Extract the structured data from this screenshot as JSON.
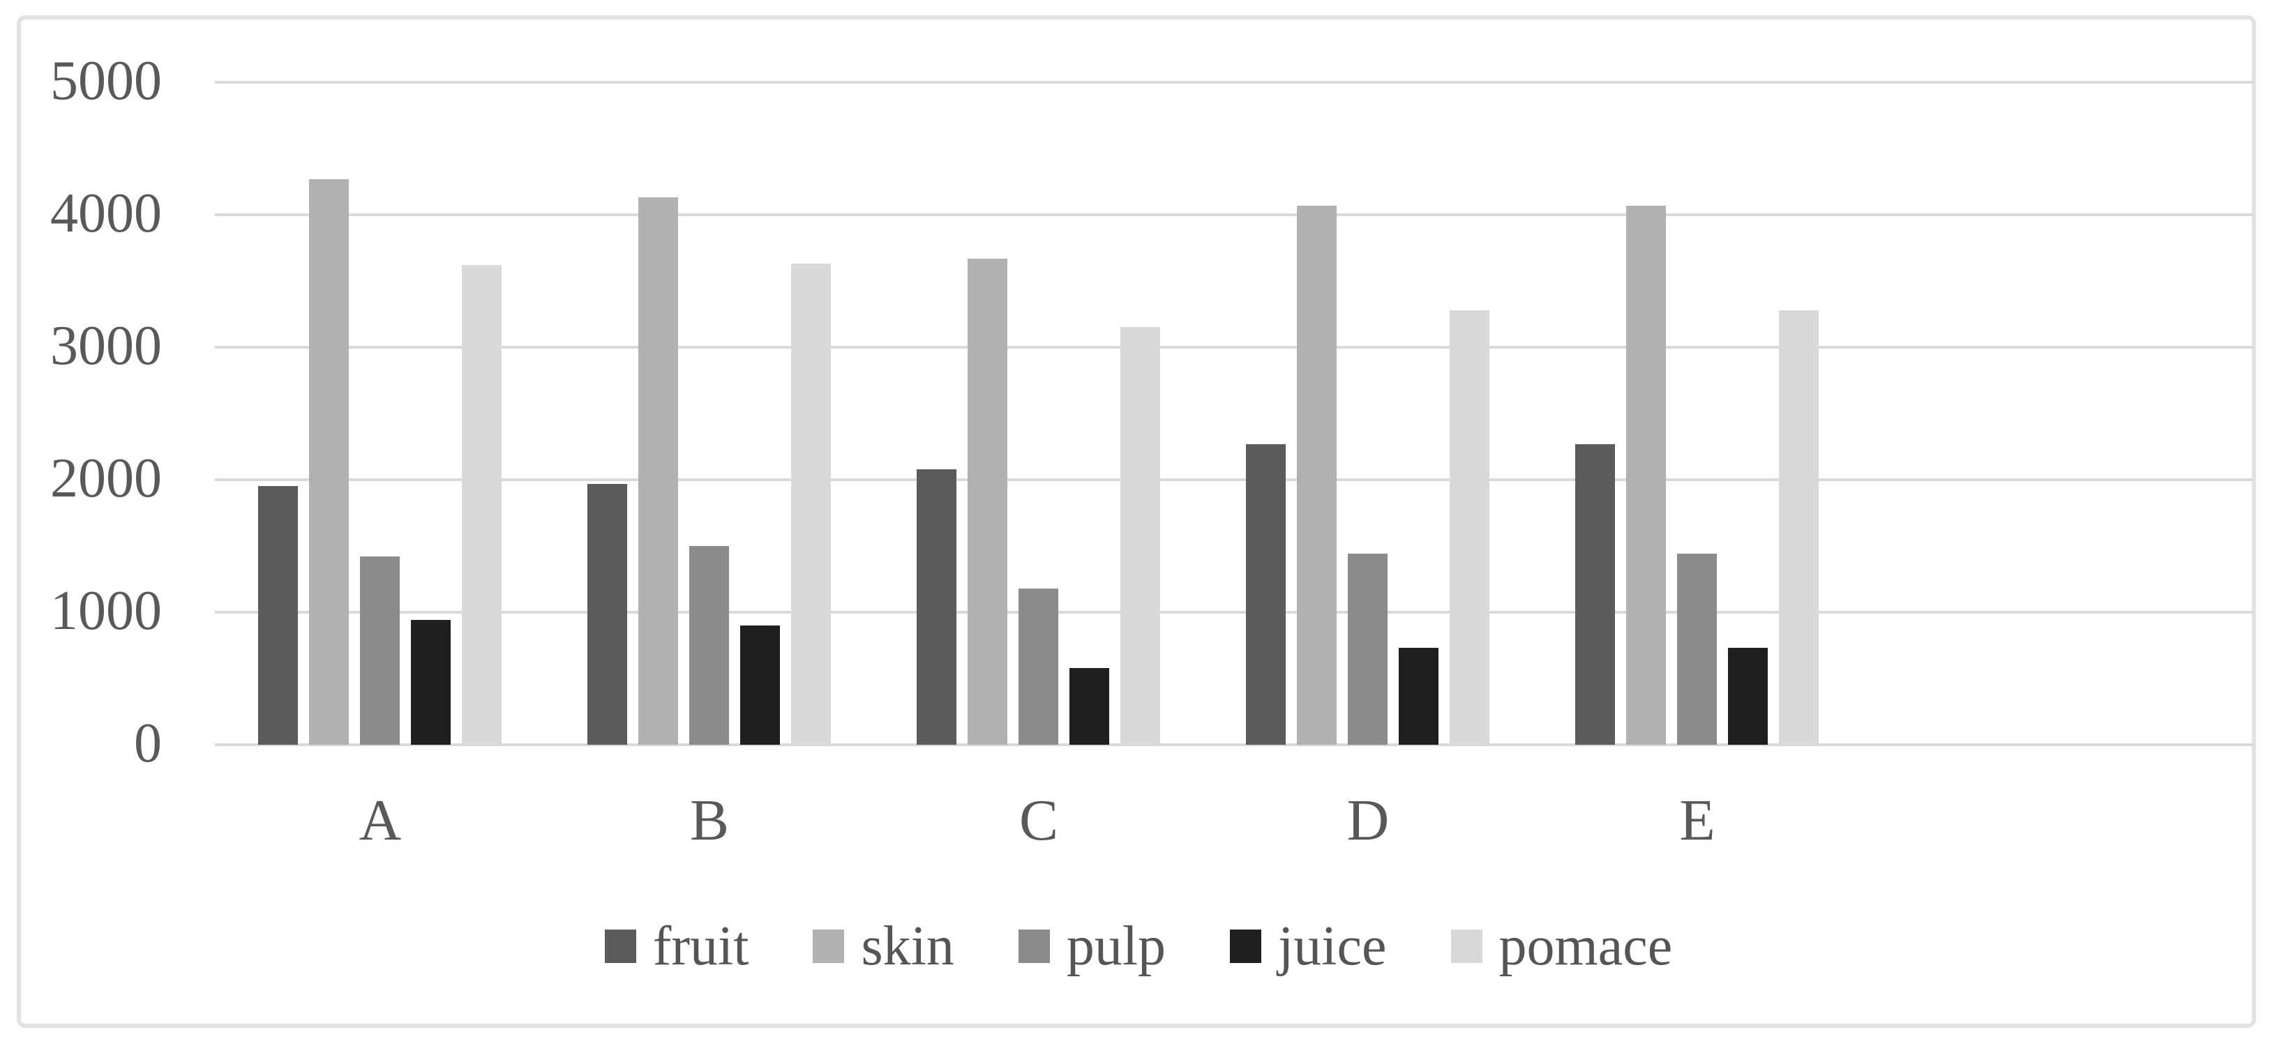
{
  "figure": {
    "background": "#ffffff",
    "frame_border_color": "#e2e2e2",
    "gridline_color": "#d9d9d9",
    "text_color": "#595959"
  },
  "chart_data": {
    "type": "bar",
    "title": "",
    "xlabel": "",
    "ylabel": "",
    "categories": [
      "A",
      "B",
      "C",
      "D",
      "E"
    ],
    "series": [
      {
        "name": "fruit",
        "color": "#5b5b5b",
        "values": [
          1950,
          1970,
          2080,
          2270,
          2270
        ]
      },
      {
        "name": "skin",
        "color": "#b1b1b1",
        "values": [
          4270,
          4130,
          3670,
          4070,
          4070
        ]
      },
      {
        "name": "pulp",
        "color": "#8b8b8b",
        "values": [
          1420,
          1500,
          1180,
          1440,
          1440
        ]
      },
      {
        "name": "juice",
        "color": "#1f1f1f",
        "values": [
          940,
          900,
          580,
          730,
          730
        ]
      },
      {
        "name": "pomace",
        "color": "#d9d9d9",
        "values": [
          3620,
          3630,
          3150,
          3280,
          3280
        ]
      }
    ],
    "ylim": [
      0,
      5000
    ],
    "ytick_step": 1000,
    "ytick_labels": [
      "0",
      "1000",
      "2000",
      "3000",
      "4000",
      "5000"
    ],
    "grid": true,
    "legend_position": "bottom",
    "legend_labels": [
      "fruit",
      "skin",
      "pulp",
      "juice",
      "pomace"
    ]
  }
}
